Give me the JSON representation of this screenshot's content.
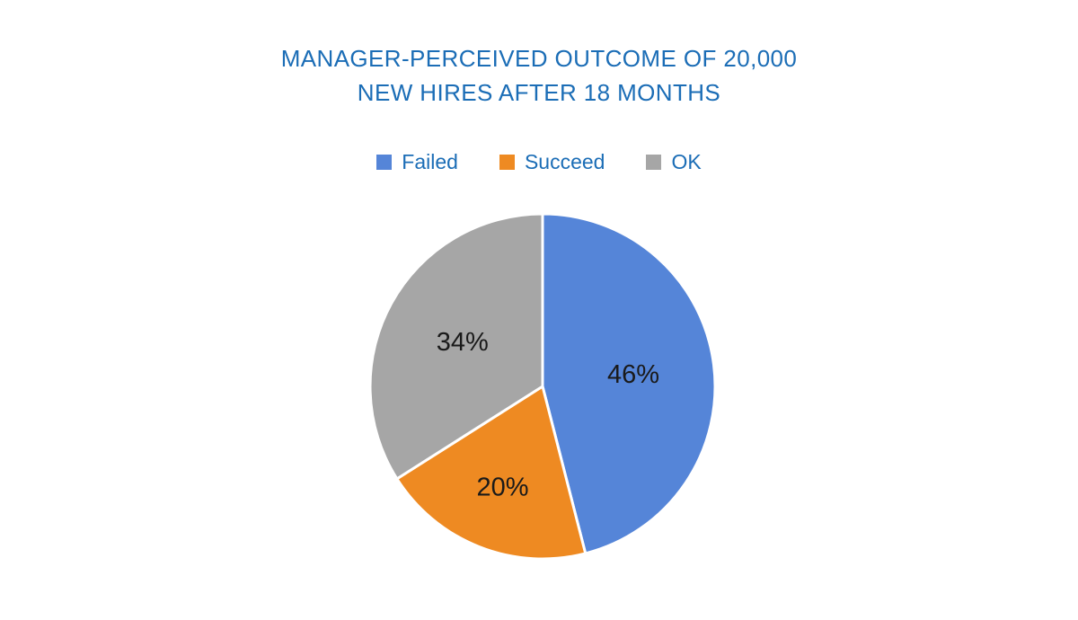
{
  "page": {
    "background": "#FFFFFF"
  },
  "header": {
    "title_lines": [
      "MANAGER-PERCEIVED OUTCOME OF 20,000",
      "NEW HIRES AFTER 18 MONTHS"
    ]
  },
  "colors": {
    "title_text": "#1B6DB6",
    "legend_text": "#1B6DB6",
    "label_text": "#1A1A1A",
    "slice_border": "#FFFFFF",
    "background": "#FFFFFF"
  },
  "chart_data": {
    "type": "pie",
    "title": "MANAGER-PERCEIVED OUTCOME OF 20,000 NEW HIRES AFTER 18 MONTHS",
    "labels": [
      "Failed",
      "Succeed",
      "OK"
    ],
    "values": [
      46,
      20,
      34
    ],
    "unit": "%",
    "data_labels": [
      "46%",
      "20%",
      "34%"
    ],
    "colors": [
      "#5585D8",
      "#EE8A22",
      "#A6A6A6"
    ],
    "start_angle_deg": 0,
    "direction": "clockwise",
    "legend_position": "top",
    "slice_border_color": "#FFFFFF"
  }
}
